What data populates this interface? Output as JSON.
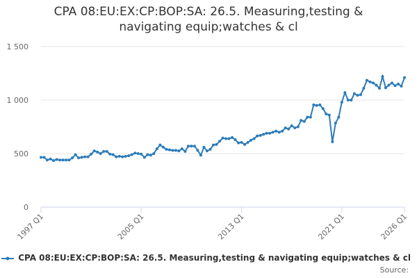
{
  "chart_data": {
    "type": "line",
    "title": "CPA 08:EU:EX:CP:BOP:SA: 26.5. Measuring,testing & navigating equip;watches & cl",
    "source": "Source:",
    "categories": [
      "1997 Q1",
      null,
      null,
      null,
      null,
      null,
      null,
      null,
      null,
      null,
      null,
      null,
      null,
      null,
      null,
      null,
      null,
      null,
      null,
      null,
      null,
      null,
      null,
      null,
      null,
      null,
      null,
      null,
      null,
      null,
      null,
      null,
      "2005 Q1",
      null,
      null,
      null,
      null,
      null,
      null,
      null,
      null,
      null,
      null,
      null,
      null,
      null,
      null,
      null,
      null,
      null,
      null,
      null,
      null,
      null,
      null,
      null,
      null,
      null,
      null,
      null,
      null,
      null,
      null,
      null,
      "2013 Q1",
      null,
      null,
      null,
      null,
      null,
      null,
      null,
      null,
      null,
      null,
      null,
      null,
      null,
      null,
      null,
      null,
      null,
      null,
      null,
      null,
      null,
      null,
      null,
      null,
      null,
      null,
      null,
      null,
      null,
      null,
      null,
      "2021 Q1",
      null,
      null,
      null,
      null,
      null,
      null,
      null,
      null,
      null,
      null,
      null,
      null,
      null,
      null,
      null,
      null,
      null,
      null,
      null,
      "2026 Q1"
    ],
    "series": [
      {
        "name": "CPA 08:EU:EX:CP:BOP:SA: 26.5. Measuring,testing & navigating equip;watches & cl",
        "color": "#2b7bb9",
        "values": [
          465,
          465,
          440,
          450,
          435,
          445,
          440,
          440,
          440,
          440,
          460,
          490,
          460,
          465,
          470,
          470,
          495,
          525,
          515,
          500,
          520,
          520,
          495,
          490,
          470,
          475,
          470,
          475,
          480,
          490,
          505,
          500,
          495,
          465,
          490,
          485,
          500,
          545,
          580,
          560,
          540,
          535,
          530,
          530,
          525,
          545,
          520,
          570,
          570,
          570,
          530,
          485,
          560,
          525,
          540,
          580,
          585,
          615,
          645,
          640,
          640,
          650,
          630,
          600,
          605,
          585,
          605,
          625,
          640,
          665,
          670,
          680,
          690,
          690,
          700,
          710,
          700,
          710,
          740,
          730,
          760,
          740,
          750,
          810,
          800,
          840,
          840,
          955,
          950,
          955,
          920,
          870,
          860,
          610,
          785,
          840,
          980,
          1070,
          1000,
          1000,
          1060,
          1045,
          1050,
          1110,
          1185,
          1170,
          1160,
          1140,
          1110,
          1220,
          1115,
          1140,
          1160,
          1135,
          1150,
          1130,
          1210
        ]
      }
    ],
    "ylim": [
      0,
      1500
    ],
    "yticks": [
      0,
      500,
      {
        "value": 1000,
        "label": "1 000"
      },
      {
        "value": 1500,
        "label": "1 500"
      }
    ],
    "grid": true
  }
}
